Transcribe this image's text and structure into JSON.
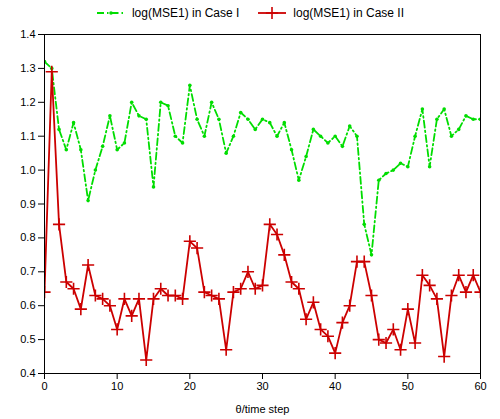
{
  "chart_data": {
    "type": "line",
    "xlabel": "θ/time step",
    "x": [
      0,
      1,
      2,
      3,
      4,
      5,
      6,
      7,
      8,
      9,
      10,
      11,
      12,
      13,
      14,
      15,
      16,
      17,
      18,
      19,
      20,
      21,
      22,
      23,
      24,
      25,
      26,
      27,
      28,
      29,
      30,
      31,
      32,
      33,
      34,
      35,
      36,
      37,
      38,
      39,
      40,
      41,
      42,
      43,
      44,
      45,
      46,
      47,
      48,
      49,
      50,
      51,
      52,
      53,
      54,
      55,
      56,
      57,
      58,
      59,
      60
    ],
    "series": [
      {
        "name": "log(MSE1) in Case I",
        "color": "#00DD00",
        "marker": "point",
        "line_style": "dashdot",
        "values": [
          1.32,
          1.3,
          1.12,
          1.06,
          1.14,
          1.06,
          0.91,
          1.0,
          1.07,
          1.16,
          1.06,
          1.08,
          1.2,
          1.16,
          1.15,
          0.95,
          1.2,
          1.19,
          1.1,
          1.08,
          1.25,
          1.15,
          1.1,
          1.2,
          1.15,
          1.05,
          1.1,
          1.17,
          1.15,
          1.12,
          1.15,
          1.14,
          1.1,
          1.14,
          1.06,
          0.97,
          1.04,
          1.12,
          1.1,
          1.08,
          1.1,
          1.07,
          1.13,
          1.1,
          0.84,
          0.75,
          0.97,
          0.99,
          1.0,
          1.02,
          1.01,
          1.1,
          1.18,
          1.01,
          1.15,
          1.18,
          1.1,
          1.12,
          1.16,
          1.15,
          1.15
        ]
      },
      {
        "name": "log(MSE1) in Case II",
        "color": "#CC0000",
        "marker": "plus",
        "line_style": "solid",
        "values": [
          0.64,
          1.29,
          0.84,
          0.67,
          0.65,
          0.59,
          0.72,
          0.63,
          0.62,
          0.6,
          0.53,
          0.62,
          0.57,
          0.62,
          0.44,
          0.62,
          0.65,
          0.63,
          0.63,
          0.62,
          0.79,
          0.77,
          0.64,
          0.63,
          0.62,
          0.47,
          0.64,
          0.65,
          0.7,
          0.65,
          0.66,
          0.84,
          0.81,
          0.75,
          0.67,
          0.65,
          0.56,
          0.61,
          0.53,
          0.51,
          0.46,
          0.55,
          0.6,
          0.73,
          0.73,
          0.63,
          0.5,
          0.49,
          0.53,
          0.47,
          0.59,
          0.49,
          0.69,
          0.66,
          0.62,
          0.45,
          0.63,
          0.69,
          0.64,
          0.69,
          0.64
        ]
      }
    ],
    "xlim": [
      0,
      60
    ],
    "ylim": [
      0.4,
      1.4
    ],
    "xticks": [
      0,
      10,
      20,
      30,
      40,
      50,
      60
    ],
    "yticks": [
      0.4,
      0.5,
      0.6,
      0.7,
      0.8,
      0.9,
      {
        "value": 1,
        "label": "1.0"
      },
      1.1,
      1.2,
      1.3,
      1.4
    ],
    "grid": false,
    "legend": "top"
  }
}
